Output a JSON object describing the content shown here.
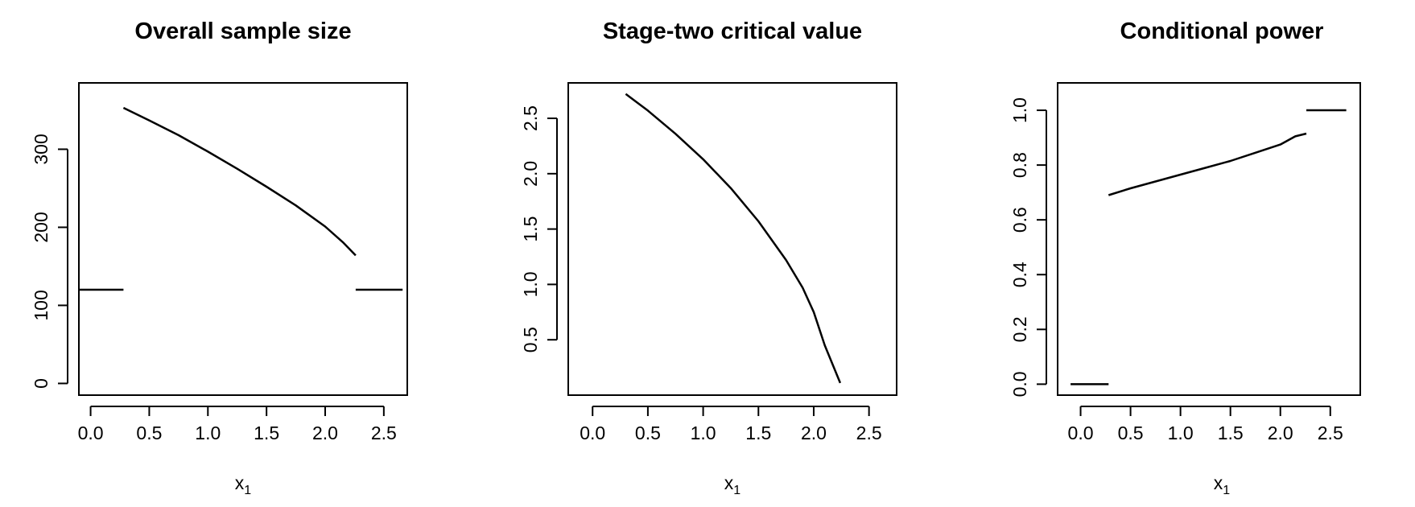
{
  "chart_data": [
    {
      "type": "line",
      "title": "Overall sample size",
      "xlabel": "x",
      "xlabel_subscript": "1",
      "ylabel": "",
      "xlim": [
        -0.1,
        2.7
      ],
      "ylim": [
        -15,
        385
      ],
      "xticks": [
        0.0,
        0.5,
        1.0,
        1.5,
        2.0,
        2.5
      ],
      "xtick_labels": [
        "0.0",
        "0.5",
        "1.0",
        "1.5",
        "2.0",
        "2.5"
      ],
      "yticks": [
        0,
        100,
        200,
        300
      ],
      "ytick_labels": [
        "0",
        "100",
        "200",
        "300"
      ],
      "grid": false,
      "series": [
        {
          "x": [
            -0.1,
            0.28
          ],
          "y": [
            120,
            120
          ]
        },
        {
          "x": [
            0.28,
            0.5,
            0.75,
            1.0,
            1.25,
            1.5,
            1.75,
            2.0,
            2.15,
            2.26
          ],
          "y": [
            353,
            337,
            318,
            297,
            275,
            252,
            228,
            201,
            181,
            164
          ]
        },
        {
          "x": [
            2.26,
            2.66
          ],
          "y": [
            120,
            120
          ]
        }
      ]
    },
    {
      "type": "line",
      "title": "Stage-two critical value",
      "xlabel": "x",
      "xlabel_subscript": "1",
      "ylabel": "",
      "xlim": [
        -0.22,
        2.75
      ],
      "ylim": [
        0.0,
        2.82
      ],
      "xticks": [
        0.0,
        0.5,
        1.0,
        1.5,
        2.0,
        2.5
      ],
      "xtick_labels": [
        "0.0",
        "0.5",
        "1.0",
        "1.5",
        "2.0",
        "2.5"
      ],
      "yticks": [
        0.5,
        1.0,
        1.5,
        2.0,
        2.5
      ],
      "ytick_labels": [
        "0.5",
        "1.0",
        "1.5",
        "2.0",
        "2.5"
      ],
      "grid": false,
      "series": [
        {
          "x": [
            0.3,
            0.5,
            0.75,
            1.0,
            1.25,
            1.5,
            1.75,
            1.9,
            2.0,
            2.1,
            2.24
          ],
          "y": [
            2.72,
            2.57,
            2.36,
            2.13,
            1.87,
            1.57,
            1.22,
            0.97,
            0.75,
            0.45,
            0.11
          ]
        }
      ]
    },
    {
      "type": "line",
      "title": "Conditional power",
      "xlabel": "x",
      "xlabel_subscript": "1",
      "ylabel": "",
      "xlim": [
        -0.23,
        2.8
      ],
      "ylim": [
        -0.04,
        1.1
      ],
      "xticks": [
        0.0,
        0.5,
        1.0,
        1.5,
        2.0,
        2.5
      ],
      "xtick_labels": [
        "0.0",
        "0.5",
        "1.0",
        "1.5",
        "2.0",
        "2.5"
      ],
      "yticks": [
        0.0,
        0.2,
        0.4,
        0.6,
        0.8,
        1.0
      ],
      "ytick_labels": [
        "0.0",
        "0.2",
        "0.4",
        "0.6",
        "0.8",
        "1.0"
      ],
      "grid": false,
      "series": [
        {
          "x": [
            -0.1,
            0.28
          ],
          "y": [
            0.0,
            0.0
          ]
        },
        {
          "x": [
            0.28,
            0.5,
            0.75,
            1.0,
            1.25,
            1.5,
            1.75,
            2.0,
            2.15,
            2.26
          ],
          "y": [
            0.69,
            0.715,
            0.74,
            0.765,
            0.79,
            0.815,
            0.845,
            0.875,
            0.905,
            0.915
          ]
        },
        {
          "x": [
            2.26,
            2.66
          ],
          "y": [
            1.0,
            1.0
          ]
        }
      ]
    }
  ]
}
